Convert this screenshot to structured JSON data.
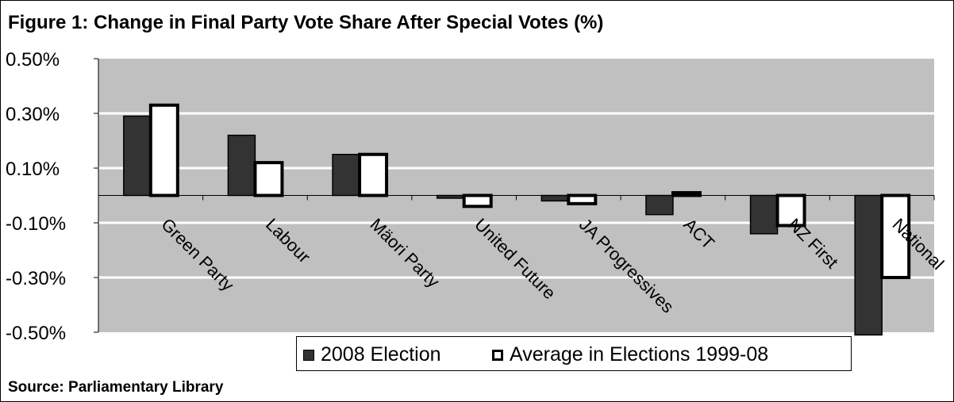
{
  "title": "Figure 1: Change in Final Party Vote Share After Special Votes (%)",
  "source": "Source: Parliamentary Library",
  "colors": {
    "plot_background": "#c0c0c0",
    "gridline": "#ffffff",
    "series_2008": "#333333",
    "series_average": "#ffffff",
    "outline": "#000000"
  },
  "chart_data": {
    "type": "bar",
    "title": "Figure 1: Change in Final Party Vote Share After Special Votes (%)",
    "xlabel": "",
    "ylabel": "",
    "categories": [
      "Green Party",
      "Labour",
      "Mäori Party",
      "United Future",
      "JA Progressives",
      "ACT",
      "NZ First",
      "National"
    ],
    "series": [
      {
        "name": "2008 Election",
        "values": [
          0.29,
          0.22,
          0.15,
          -0.01,
          -0.02,
          -0.07,
          -0.14,
          -0.51
        ]
      },
      {
        "name": "Average in Elections 1999-08",
        "values": [
          0.33,
          0.12,
          0.15,
          -0.04,
          -0.03,
          0.01,
          -0.11,
          -0.3
        ]
      }
    ],
    "ylim": [
      -0.5,
      0.5
    ],
    "yticks": [
      0.5,
      0.3,
      0.1,
      -0.1,
      -0.3,
      -0.5
    ],
    "ytick_labels": [
      "0.50%",
      "0.30%",
      "0.10%",
      "-0.10%",
      "-0.30%",
      "-0.50%"
    ],
    "grid": true,
    "legend": "bottom"
  }
}
